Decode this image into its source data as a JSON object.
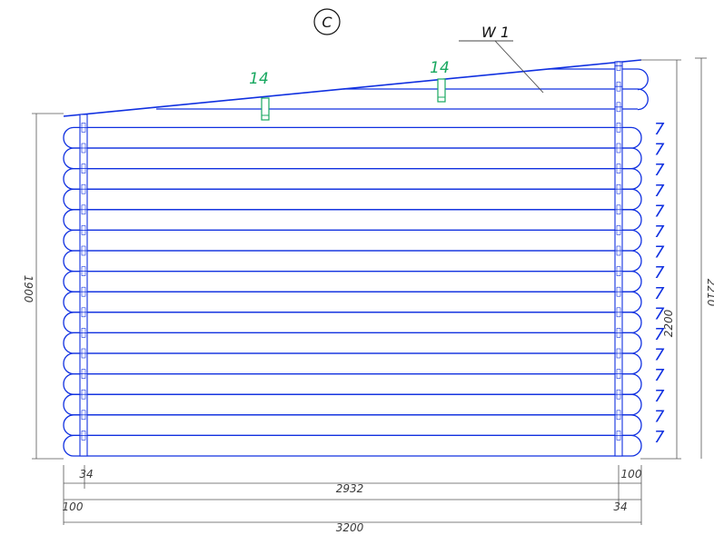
{
  "view_marker": "C",
  "wall_label": "W 1",
  "colors": {
    "logs": "#1030e0",
    "beams": "#18a860",
    "dims": "#555555",
    "text": "#111111"
  },
  "beam_labels": [
    "14",
    "14"
  ],
  "log_numbers": [
    "7",
    "7",
    "7",
    "7",
    "7",
    "7",
    "7",
    "7",
    "7",
    "7",
    "7",
    "7",
    "7",
    "7",
    "7",
    "7"
  ],
  "dimensions": {
    "left_height": "1900",
    "right_inner_height": "2200",
    "right_outer_height": "2210",
    "bottom_inner_span": "2932",
    "bottom_total": "3200",
    "left_top_offset": "34",
    "left_bottom_offset": "100",
    "right_top_offset": "100",
    "right_bottom_offset": "34"
  }
}
